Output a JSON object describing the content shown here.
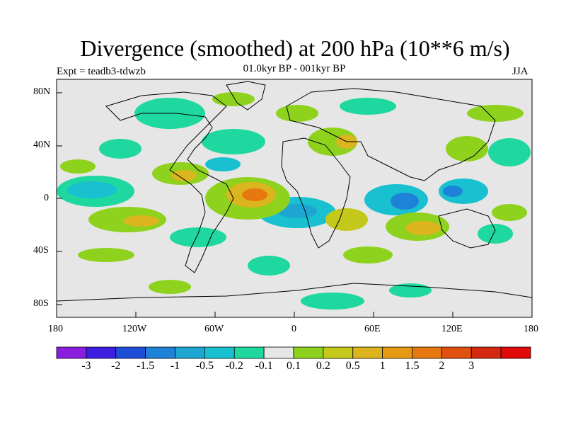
{
  "title": "Divergence (smoothed) at 200 hPa (10**6 m/s)",
  "experiment": "Expt = teadb3-tdwzb",
  "subtitle": "01.0kyr BP - 001kyr BP",
  "season": "JJA",
  "map": {
    "lat_labels": [
      "80N",
      "40N",
      "0",
      "40S",
      "80S"
    ],
    "lon_labels": [
      "180",
      "120W",
      "60W",
      "0",
      "60E",
      "120E",
      "180"
    ],
    "background_color": "#e6e6e6"
  },
  "colorbar": {
    "colors": [
      "#8a1ee0",
      "#3d1ee0",
      "#1e4ed8",
      "#1e82d8",
      "#1ea6d2",
      "#18c0d0",
      "#1ed8a0",
      "#e6e6e6",
      "#8ed21e",
      "#c4c81a",
      "#dcb41e",
      "#e69a14",
      "#e6780f",
      "#e0500f",
      "#d42810",
      "#e00a0a"
    ],
    "labels": [
      "-3",
      "-2",
      "-1.5",
      "-1",
      "-0.5",
      "-0.2",
      "-0.1",
      "0.1",
      "0.2",
      "0.5",
      "1",
      "1.5",
      "2",
      "3"
    ]
  }
}
